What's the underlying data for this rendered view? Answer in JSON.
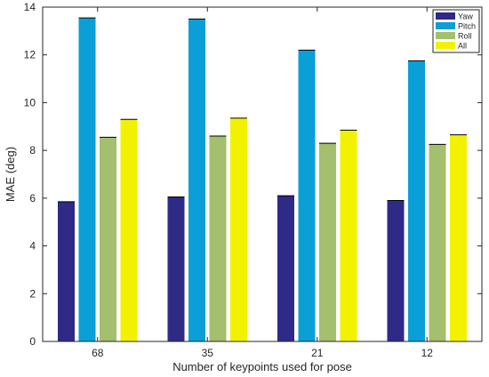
{
  "chart_data": {
    "type": "bar",
    "xlabel": "Number of keypoints used for pose",
    "ylabel": "MAE (deg)",
    "categories": [
      "68",
      "35",
      "21",
      "12"
    ],
    "ylim": [
      0,
      14
    ],
    "yticks": [
      0,
      2,
      4,
      6,
      8,
      10,
      12,
      14
    ],
    "grid": false,
    "legend_position": "top-right",
    "series": [
      {
        "name": "Yaw",
        "color": "#2e2a86",
        "values": [
          5.85,
          6.05,
          6.1,
          5.9
        ]
      },
      {
        "name": "Pitch",
        "color": "#0a9fd6",
        "values": [
          13.55,
          13.5,
          12.2,
          11.75
        ]
      },
      {
        "name": "Roll",
        "color": "#a4bf6e",
        "values": [
          8.55,
          8.6,
          8.3,
          8.25
        ]
      },
      {
        "name": "All",
        "color": "#f2f200",
        "values": [
          9.3,
          9.35,
          8.85,
          8.65
        ]
      }
    ]
  }
}
